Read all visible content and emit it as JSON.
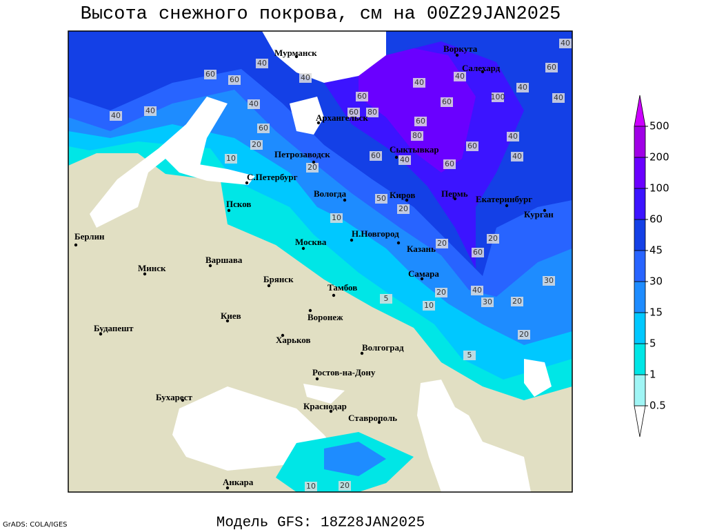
{
  "title": "Высота снежного покрова, см на 00Z29JAN2025",
  "footer": "Модель GFS: 18Z28JAN2025",
  "credit": "GrADS: COLA/IGES",
  "cities": [
    "Мурманск",
    "Воркута",
    "Салехард",
    "Архангельск",
    "Петрозаводск",
    "Сыктывкар",
    "С.Петербург",
    "Вологда",
    "Киров",
    "Пермь",
    "Екатеринбург",
    "Курган",
    "Псков",
    "Н.Новгород",
    "Казань",
    "Москва",
    "Берлин",
    "Минск",
    "Варшава",
    "Брянск",
    "Тамбов",
    "Самара",
    "Киев",
    "Воронеж",
    "Харьков",
    "Волгоград",
    "Будапешт",
    "Ростов-на-Дону",
    "Бухарест",
    "Краснодар",
    "Ставрополь",
    "Анкара"
  ],
  "contour_labels": [
    60,
    40,
    60,
    40,
    60,
    40,
    40,
    60,
    100,
    40,
    60,
    40,
    40,
    60,
    80,
    60,
    80,
    40,
    60,
    40,
    40,
    60,
    60,
    20,
    10,
    20,
    60,
    40,
    40,
    40,
    30,
    20,
    30,
    40,
    20,
    20,
    5,
    10,
    5,
    20,
    20,
    60,
    10,
    20,
    50,
    20,
    10
  ],
  "colorbar": {
    "levels": [
      0.5,
      1,
      5,
      15,
      30,
      45,
      60,
      100,
      200,
      500
    ],
    "colors": [
      "#a0f5f5",
      "#00e6e6",
      "#00c8ff",
      "#1e8cff",
      "#2864ff",
      "#1440e6",
      "#3c14ff",
      "#6a00ff",
      "#a000e6"
    ],
    "under_color": "#ffffff",
    "over_color": "#cc00ff"
  }
}
